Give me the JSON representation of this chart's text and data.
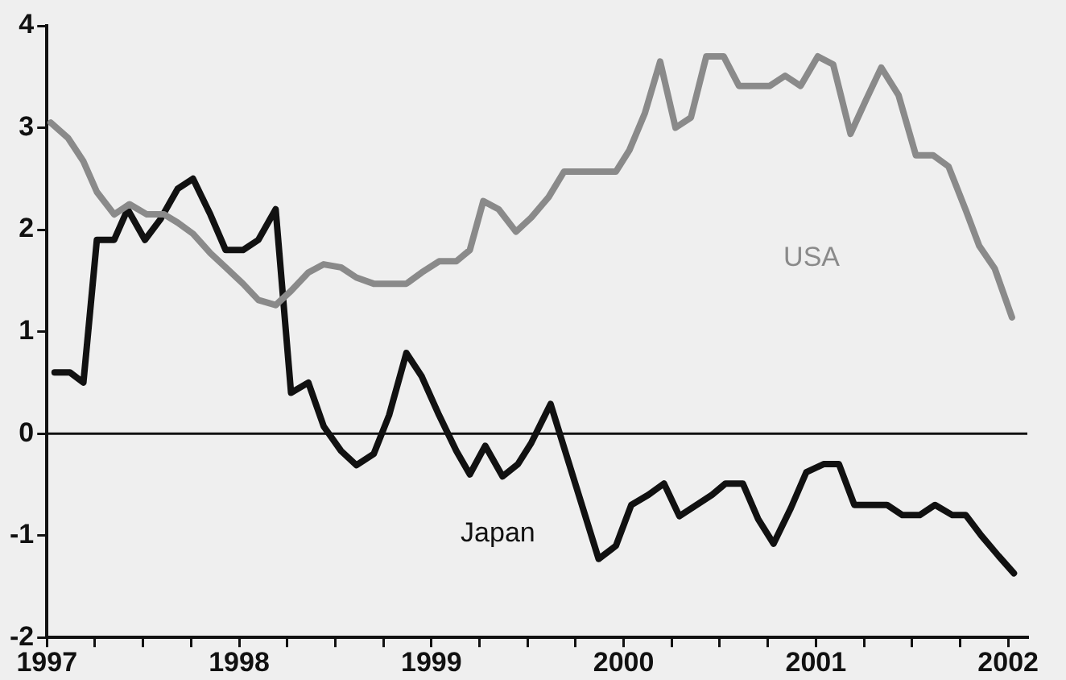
{
  "chart_data": {
    "type": "line",
    "xlim": [
      1997,
      2002.1
    ],
    "ylim": [
      -2,
      4
    ],
    "xticks": [
      1997,
      {
        "value": 1997.25,
        "label": null
      },
      {
        "value": 1997.5,
        "label": null
      },
      {
        "value": 1997.75,
        "label": null
      },
      1998,
      {
        "value": 1998.25,
        "label": null
      },
      {
        "value": 1998.5,
        "label": null
      },
      {
        "value": 1998.75,
        "label": null
      },
      1999,
      {
        "value": 1999.25,
        "label": null
      },
      {
        "value": 1999.5,
        "label": null
      },
      {
        "value": 1999.75,
        "label": null
      },
      2000,
      {
        "value": 2000.25,
        "label": null
      },
      {
        "value": 2000.5,
        "label": null
      },
      {
        "value": 2000.75,
        "label": null
      },
      2001,
      {
        "value": 2001.25,
        "label": null
      },
      {
        "value": 2001.5,
        "label": null
      },
      {
        "value": 2001.75,
        "label": null
      },
      2002
    ],
    "yticks": [
      -2,
      -1,
      0,
      1,
      2,
      3,
      4
    ],
    "grid": false,
    "legend": false,
    "marker": "none",
    "line_style": "solid",
    "ref_lines": [
      {
        "axis": "y",
        "value": 0,
        "color": "#111111"
      }
    ],
    "series": [
      {
        "name": "USA",
        "color": "#8a8a8a",
        "x": [
          1997.02,
          1997.11,
          1997.19,
          1997.26,
          1997.35,
          1997.43,
          1997.52,
          1997.61,
          1997.68,
          1997.76,
          1997.85,
          1997.93,
          1998.02,
          1998.1,
          1998.19,
          1998.27,
          1998.36,
          1998.44,
          1998.53,
          1998.61,
          1998.7,
          1998.78,
          1998.87,
          1998.95,
          1999.04,
          1999.13,
          1999.2,
          1999.27,
          1999.35,
          1999.44,
          1999.52,
          1999.61,
          1999.69,
          1999.78,
          1999.86,
          1999.96,
          2000.03,
          2000.11,
          2000.19,
          2000.27,
          2000.35,
          2000.43,
          2000.52,
          2000.6,
          2000.69,
          2000.76,
          2000.84,
          2000.92,
          2001.01,
          2001.09,
          2001.18,
          2001.26,
          2001.34,
          2001.43,
          2001.52,
          2001.61,
          2001.69,
          2001.78,
          2001.85,
          2001.93,
          2002.02
        ],
        "values": [
          3.05,
          2.9,
          2.67,
          2.37,
          2.15,
          2.25,
          2.15,
          2.15,
          2.07,
          1.96,
          1.77,
          1.63,
          1.47,
          1.31,
          1.26,
          1.4,
          1.58,
          1.66,
          1.63,
          1.53,
          1.47,
          1.47,
          1.47,
          1.58,
          1.69,
          1.69,
          1.8,
          2.28,
          2.2,
          1.98,
          2.12,
          2.32,
          2.57,
          2.57,
          2.57,
          2.57,
          2.78,
          3.14,
          3.65,
          3.0,
          3.1,
          3.7,
          3.7,
          3.41,
          3.41,
          3.41,
          3.51,
          3.41,
          3.7,
          3.62,
          2.94,
          3.27,
          3.59,
          3.32,
          2.73,
          2.73,
          2.62,
          2.19,
          1.84,
          1.62,
          1.14
        ]
      },
      {
        "name": "Japan",
        "color": "#111111",
        "x": [
          1997.04,
          1997.12,
          1997.19,
          1997.26,
          1997.35,
          1997.42,
          1997.51,
          1997.59,
          1997.68,
          1997.76,
          1997.85,
          1997.93,
          1998.02,
          1998.1,
          1998.19,
          1998.27,
          1998.36,
          1998.44,
          1998.53,
          1998.61,
          1998.7,
          1998.78,
          1998.87,
          1998.95,
          1999.04,
          1999.13,
          1999.2,
          1999.28,
          1999.37,
          1999.45,
          1999.52,
          1999.62,
          1999.87,
          1999.96,
          2000.04,
          2000.13,
          2000.21,
          2000.29,
          2000.38,
          2000.46,
          2000.53,
          2000.62,
          2000.7,
          2000.78,
          2000.87,
          2000.95,
          2001.04,
          2001.12,
          2001.2,
          2001.29,
          2001.37,
          2001.45,
          2001.54,
          2001.62,
          2001.71,
          2001.78,
          2001.86,
          2001.95,
          2002.03
        ],
        "values": [
          0.6,
          0.6,
          0.5,
          1.9,
          1.9,
          2.2,
          1.9,
          2.1,
          2.4,
          2.5,
          2.15,
          1.8,
          1.8,
          1.9,
          2.2,
          0.4,
          0.5,
          0.07,
          -0.17,
          -0.31,
          -0.2,
          0.18,
          0.79,
          0.56,
          0.18,
          -0.17,
          -0.4,
          -0.12,
          -0.42,
          -0.3,
          -0.09,
          0.29,
          -1.23,
          -1.1,
          -0.7,
          -0.6,
          -0.49,
          -0.81,
          -0.7,
          -0.6,
          -0.49,
          -0.49,
          -0.84,
          -1.08,
          -0.73,
          -0.38,
          -0.3,
          -0.3,
          -0.7,
          -0.7,
          -0.7,
          -0.8,
          -0.8,
          -0.7,
          -0.8,
          -0.8,
          -1.0,
          -1.2,
          -1.37
        ]
      }
    ]
  }
}
